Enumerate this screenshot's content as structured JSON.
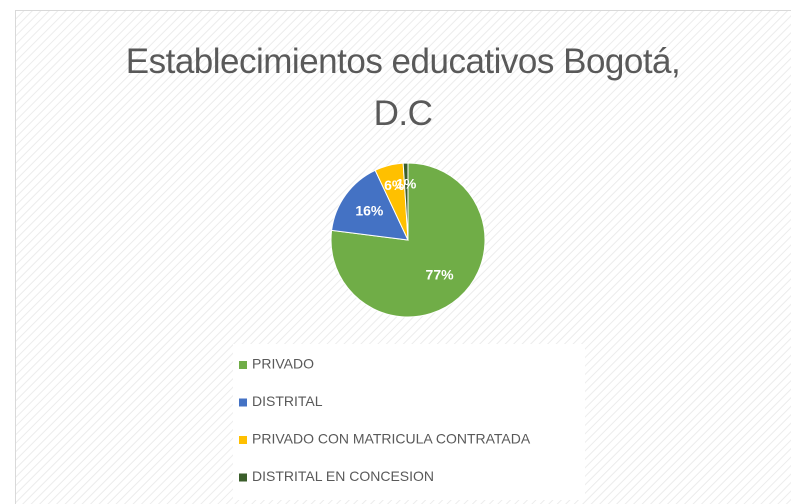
{
  "chart_data": {
    "type": "pie",
    "title": "Establecimientos educativos Bogotá, D.C",
    "categories": [
      "PRIVADO",
      "DISTRITAL",
      "PRIVADO CON MATRICULA CONTRATADA",
      "DISTRITAL EN CONCESION"
    ],
    "values": [
      77,
      16,
      6,
      1
    ],
    "value_labels": [
      "77%",
      "16%",
      "6%",
      "1%"
    ],
    "colors": [
      "#70ad47",
      "#4472c4",
      "#ffc000",
      "#3b5e2b"
    ]
  }
}
